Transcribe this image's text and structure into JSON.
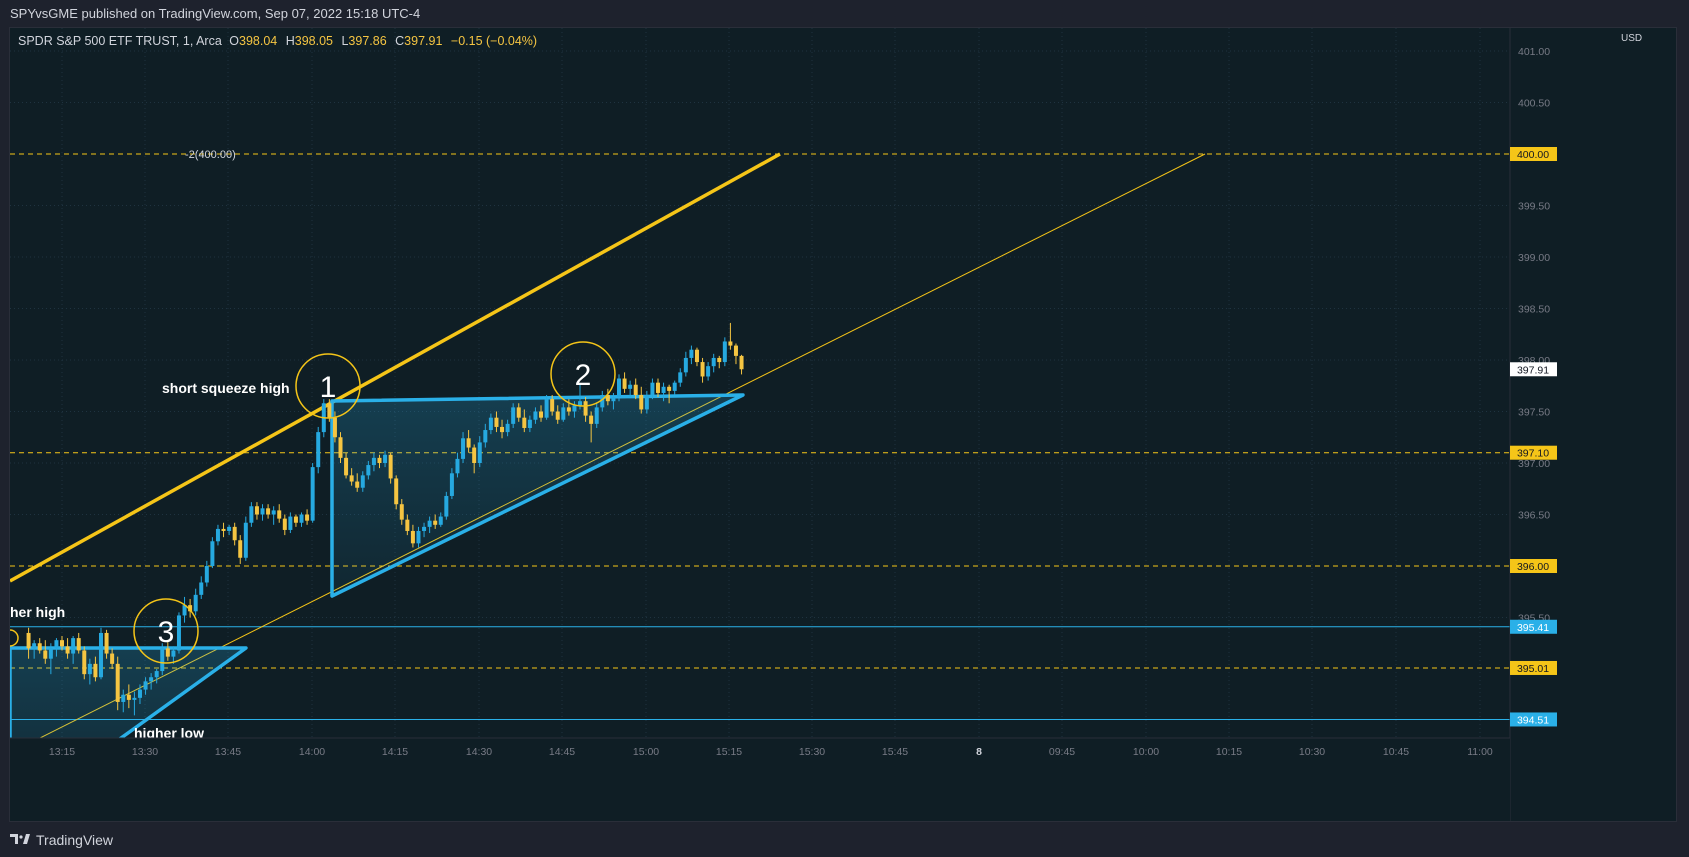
{
  "header": {
    "published": "SPYvsGME published on TradingView.com, Sep 07, 2022 15:18 UTC-4"
  },
  "footer": {
    "brand": "TradingView"
  },
  "colors": {
    "bg": "#0f1e25",
    "up": "#26a9e0",
    "down": "#f5c542",
    "accent_yellow": "#f5c518",
    "accent_blue": "#2ab0e8",
    "grid": "#1f3340"
  },
  "chart_data": {
    "type": "candlestick",
    "title": "SPDR S&P 500 ETF TRUST, 1, Arca",
    "ohlc": {
      "O": "398.04",
      "H": "398.05",
      "L": "397.86",
      "C": "397.91",
      "change": "−0.15 (−0.04%)"
    },
    "currency": "USD",
    "ylim": [
      394.3,
      401.1
    ],
    "y_ticks": [
      "395.50",
      "396.50",
      "397.00",
      "397.50",
      "398.00",
      "398.50",
      "399.00",
      "399.50",
      "400.50",
      "401.00"
    ],
    "x_ticks": [
      "13:15",
      "13:30",
      "13:45",
      "14:00",
      "14:15",
      "14:30",
      "14:45",
      "15:00",
      "15:15",
      "15:30",
      "15:45",
      "8",
      "09:45",
      "10:00",
      "10:15",
      "10:30",
      "10:45",
      "11:00"
    ],
    "last_price": "397.91",
    "horizontal_lines": [
      {
        "price": "400.00",
        "style": "dashed",
        "color": "#f5c518",
        "label": "-2(400.00)"
      },
      {
        "price": "397.10",
        "style": "dashed",
        "color": "#f5c518"
      },
      {
        "price": "396.00",
        "style": "dashed",
        "color": "#f5c518"
      },
      {
        "price": "395.41",
        "style": "solid",
        "color": "#2ab0e8"
      },
      {
        "price": "395.01",
        "style": "dashed",
        "color": "#f5c518"
      },
      {
        "price": "394.51",
        "style": "solid",
        "color": "#2ab0e8"
      }
    ],
    "annotations": [
      {
        "label": "1",
        "text": "short squeeze high"
      },
      {
        "label": "2",
        "text": ""
      },
      {
        "label": "3",
        "text": ""
      },
      {
        "label": "",
        "text": "her high"
      },
      {
        "label": "",
        "text": "higher low"
      }
    ],
    "candles": [
      {
        "t": "13:09",
        "o": 395.35,
        "h": 395.4,
        "l": 395.1,
        "c": 395.2
      },
      {
        "t": "13:10",
        "o": 395.2,
        "h": 395.28,
        "l": 395.1,
        "c": 395.25
      },
      {
        "t": "13:11",
        "o": 395.25,
        "h": 395.3,
        "l": 395.15,
        "c": 395.18
      },
      {
        "t": "13:12",
        "o": 395.18,
        "h": 395.28,
        "l": 395.05,
        "c": 395.1
      },
      {
        "t": "13:13",
        "o": 395.1,
        "h": 395.25,
        "l": 394.95,
        "c": 395.2
      },
      {
        "t": "13:14",
        "o": 395.2,
        "h": 395.3,
        "l": 395.12,
        "c": 395.28
      },
      {
        "t": "13:15",
        "o": 395.28,
        "h": 395.32,
        "l": 395.18,
        "c": 395.22
      },
      {
        "t": "13:16",
        "o": 395.22,
        "h": 395.3,
        "l": 395.1,
        "c": 395.15
      },
      {
        "t": "13:17",
        "o": 395.15,
        "h": 395.32,
        "l": 395.05,
        "c": 395.3
      },
      {
        "t": "13:18",
        "o": 395.3,
        "h": 395.35,
        "l": 395.15,
        "c": 395.18
      },
      {
        "t": "13:19",
        "o": 395.18,
        "h": 395.22,
        "l": 394.9,
        "c": 394.95
      },
      {
        "t": "13:20",
        "o": 394.95,
        "h": 395.1,
        "l": 394.85,
        "c": 395.05
      },
      {
        "t": "13:21",
        "o": 395.05,
        "h": 395.12,
        "l": 394.88,
        "c": 394.92
      },
      {
        "t": "13:22",
        "o": 394.92,
        "h": 395.4,
        "l": 394.9,
        "c": 395.35
      },
      {
        "t": "13:23",
        "o": 395.35,
        "h": 395.38,
        "l": 395.1,
        "c": 395.15
      },
      {
        "t": "13:24",
        "o": 395.15,
        "h": 395.2,
        "l": 395.0,
        "c": 395.05
      },
      {
        "t": "13:25",
        "o": 395.05,
        "h": 395.12,
        "l": 394.6,
        "c": 394.68
      },
      {
        "t": "13:26",
        "o": 394.68,
        "h": 394.8,
        "l": 394.58,
        "c": 394.75
      },
      {
        "t": "13:27",
        "o": 394.75,
        "h": 394.85,
        "l": 394.62,
        "c": 394.7
      },
      {
        "t": "13:28",
        "o": 394.7,
        "h": 394.78,
        "l": 394.55,
        "c": 394.72
      },
      {
        "t": "13:29",
        "o": 394.72,
        "h": 394.85,
        "l": 394.66,
        "c": 394.8
      },
      {
        "t": "13:30",
        "o": 394.8,
        "h": 394.92,
        "l": 394.75,
        "c": 394.88
      },
      {
        "t": "13:31",
        "o": 394.88,
        "h": 394.96,
        "l": 394.8,
        "c": 394.92
      },
      {
        "t": "13:32",
        "o": 394.92,
        "h": 395.0,
        "l": 394.86,
        "c": 394.98
      },
      {
        "t": "13:33",
        "o": 394.98,
        "h": 395.25,
        "l": 394.94,
        "c": 395.2
      },
      {
        "t": "13:34",
        "o": 395.2,
        "h": 395.26,
        "l": 395.08,
        "c": 395.12
      },
      {
        "t": "13:35",
        "o": 395.12,
        "h": 395.22,
        "l": 395.05,
        "c": 395.18
      },
      {
        "t": "13:36",
        "o": 395.18,
        "h": 395.55,
        "l": 395.15,
        "c": 395.52
      },
      {
        "t": "13:37",
        "o": 395.52,
        "h": 395.7,
        "l": 395.45,
        "c": 395.62
      },
      {
        "t": "13:38",
        "o": 395.62,
        "h": 395.68,
        "l": 395.5,
        "c": 395.56
      },
      {
        "t": "13:39",
        "o": 395.56,
        "h": 395.78,
        "l": 395.52,
        "c": 395.72
      },
      {
        "t": "13:40",
        "o": 395.72,
        "h": 395.9,
        "l": 395.68,
        "c": 395.84
      },
      {
        "t": "13:41",
        "o": 395.84,
        "h": 396.05,
        "l": 395.8,
        "c": 396.0
      },
      {
        "t": "13:42",
        "o": 396.0,
        "h": 396.28,
        "l": 395.98,
        "c": 396.24
      },
      {
        "t": "13:43",
        "o": 396.24,
        "h": 396.4,
        "l": 396.2,
        "c": 396.36
      },
      {
        "t": "13:44",
        "o": 396.36,
        "h": 396.42,
        "l": 396.28,
        "c": 396.34
      },
      {
        "t": "13:45",
        "o": 396.34,
        "h": 396.4,
        "l": 396.3,
        "c": 396.38
      },
      {
        "t": "13:46",
        "o": 396.38,
        "h": 396.42,
        "l": 396.2,
        "c": 396.25
      },
      {
        "t": "13:47",
        "o": 396.25,
        "h": 396.3,
        "l": 396.02,
        "c": 396.08
      },
      {
        "t": "13:48",
        "o": 396.08,
        "h": 396.48,
        "l": 396.05,
        "c": 396.42
      },
      {
        "t": "13:49",
        "o": 396.42,
        "h": 396.62,
        "l": 396.38,
        "c": 396.58
      },
      {
        "t": "13:50",
        "o": 396.58,
        "h": 396.62,
        "l": 396.45,
        "c": 396.5
      },
      {
        "t": "13:51",
        "o": 396.5,
        "h": 396.6,
        "l": 396.44,
        "c": 396.56
      },
      {
        "t": "13:52",
        "o": 396.56,
        "h": 396.6,
        "l": 396.46,
        "c": 396.5
      },
      {
        "t": "13:53",
        "o": 396.5,
        "h": 396.58,
        "l": 396.4,
        "c": 396.54
      },
      {
        "t": "13:54",
        "o": 396.54,
        "h": 396.6,
        "l": 396.42,
        "c": 396.46
      },
      {
        "t": "13:55",
        "o": 396.46,
        "h": 396.5,
        "l": 396.3,
        "c": 396.35
      },
      {
        "t": "13:56",
        "o": 396.35,
        "h": 396.52,
        "l": 396.32,
        "c": 396.48
      },
      {
        "t": "13:57",
        "o": 396.48,
        "h": 396.5,
        "l": 396.38,
        "c": 396.42
      },
      {
        "t": "13:58",
        "o": 396.42,
        "h": 396.52,
        "l": 396.38,
        "c": 396.5
      },
      {
        "t": "13:59",
        "o": 396.5,
        "h": 396.55,
        "l": 396.4,
        "c": 396.44
      },
      {
        "t": "14:00",
        "o": 396.44,
        "h": 397.0,
        "l": 396.42,
        "c": 396.96
      },
      {
        "t": "14:01",
        "o": 396.96,
        "h": 397.35,
        "l": 396.9,
        "c": 397.3
      },
      {
        "t": "14:02",
        "o": 397.3,
        "h": 397.62,
        "l": 397.25,
        "c": 397.58
      },
      {
        "t": "14:03",
        "o": 397.58,
        "h": 397.62,
        "l": 397.4,
        "c": 397.44
      },
      {
        "t": "14:04",
        "o": 397.44,
        "h": 397.5,
        "l": 397.2,
        "c": 397.25
      },
      {
        "t": "14:05",
        "o": 397.25,
        "h": 397.3,
        "l": 397.0,
        "c": 397.05
      },
      {
        "t": "14:06",
        "o": 397.05,
        "h": 397.1,
        "l": 396.85,
        "c": 396.88
      },
      {
        "t": "14:07",
        "o": 396.88,
        "h": 396.95,
        "l": 396.78,
        "c": 396.82
      },
      {
        "t": "14:08",
        "o": 396.82,
        "h": 396.9,
        "l": 396.72,
        "c": 396.76
      },
      {
        "t": "14:09",
        "o": 396.76,
        "h": 396.92,
        "l": 396.72,
        "c": 396.88
      },
      {
        "t": "14:10",
        "o": 396.88,
        "h": 397.02,
        "l": 396.84,
        "c": 396.98
      },
      {
        "t": "14:11",
        "o": 396.98,
        "h": 397.1,
        "l": 396.92,
        "c": 397.05
      },
      {
        "t": "14:12",
        "o": 397.05,
        "h": 397.08,
        "l": 396.95,
        "c": 397.0
      },
      {
        "t": "14:13",
        "o": 397.0,
        "h": 397.12,
        "l": 396.96,
        "c": 397.08
      },
      {
        "t": "14:14",
        "o": 397.08,
        "h": 397.1,
        "l": 396.8,
        "c": 396.85
      },
      {
        "t": "14:15",
        "o": 396.85,
        "h": 396.88,
        "l": 396.55,
        "c": 396.6
      },
      {
        "t": "14:16",
        "o": 396.6,
        "h": 396.65,
        "l": 396.4,
        "c": 396.45
      },
      {
        "t": "14:17",
        "o": 396.45,
        "h": 396.5,
        "l": 396.3,
        "c": 396.34
      },
      {
        "t": "14:18",
        "o": 396.34,
        "h": 396.4,
        "l": 396.18,
        "c": 396.22
      },
      {
        "t": "14:19",
        "o": 396.22,
        "h": 396.38,
        "l": 396.18,
        "c": 396.34
      },
      {
        "t": "14:20",
        "o": 396.34,
        "h": 396.42,
        "l": 396.28,
        "c": 396.38
      },
      {
        "t": "14:21",
        "o": 396.38,
        "h": 396.48,
        "l": 396.32,
        "c": 396.44
      },
      {
        "t": "14:22",
        "o": 396.44,
        "h": 396.5,
        "l": 396.36,
        "c": 396.4
      },
      {
        "t": "14:23",
        "o": 396.4,
        "h": 396.52,
        "l": 396.38,
        "c": 396.48
      },
      {
        "t": "14:24",
        "o": 396.48,
        "h": 396.72,
        "l": 396.45,
        "c": 396.68
      },
      {
        "t": "14:25",
        "o": 396.68,
        "h": 396.95,
        "l": 396.65,
        "c": 396.9
      },
      {
        "t": "14:26",
        "o": 396.9,
        "h": 397.1,
        "l": 396.86,
        "c": 397.04
      },
      {
        "t": "14:27",
        "o": 397.04,
        "h": 397.3,
        "l": 397.0,
        "c": 397.24
      },
      {
        "t": "14:28",
        "o": 397.24,
        "h": 397.32,
        "l": 397.1,
        "c": 397.15
      },
      {
        "t": "14:29",
        "o": 397.15,
        "h": 397.18,
        "l": 396.9,
        "c": 397.0
      },
      {
        "t": "14:30",
        "o": 397.0,
        "h": 397.26,
        "l": 396.96,
        "c": 397.2
      },
      {
        "t": "14:31",
        "o": 397.2,
        "h": 397.38,
        "l": 397.15,
        "c": 397.32
      },
      {
        "t": "14:32",
        "o": 397.32,
        "h": 397.48,
        "l": 397.28,
        "c": 397.44
      },
      {
        "t": "14:33",
        "o": 397.44,
        "h": 397.5,
        "l": 397.3,
        "c": 397.35
      },
      {
        "t": "14:34",
        "o": 397.35,
        "h": 397.42,
        "l": 397.24,
        "c": 397.3
      },
      {
        "t": "14:35",
        "o": 397.3,
        "h": 397.42,
        "l": 397.26,
        "c": 397.38
      },
      {
        "t": "14:36",
        "o": 397.38,
        "h": 397.58,
        "l": 397.34,
        "c": 397.54
      },
      {
        "t": "14:37",
        "o": 397.54,
        "h": 397.58,
        "l": 397.4,
        "c": 397.44
      },
      {
        "t": "14:38",
        "o": 397.44,
        "h": 397.52,
        "l": 397.3,
        "c": 397.34
      },
      {
        "t": "14:39",
        "o": 397.34,
        "h": 397.46,
        "l": 397.3,
        "c": 397.42
      },
      {
        "t": "14:40",
        "o": 397.42,
        "h": 397.54,
        "l": 397.38,
        "c": 397.5
      },
      {
        "t": "14:41",
        "o": 397.5,
        "h": 397.56,
        "l": 397.4,
        "c": 397.44
      },
      {
        "t": "14:42",
        "o": 397.44,
        "h": 397.66,
        "l": 397.42,
        "c": 397.62
      },
      {
        "t": "14:43",
        "o": 397.62,
        "h": 397.66,
        "l": 397.46,
        "c": 397.5
      },
      {
        "t": "14:44",
        "o": 397.5,
        "h": 397.56,
        "l": 397.38,
        "c": 397.42
      },
      {
        "t": "14:45",
        "o": 397.42,
        "h": 397.58,
        "l": 397.4,
        "c": 397.54
      },
      {
        "t": "14:46",
        "o": 397.54,
        "h": 397.62,
        "l": 397.46,
        "c": 397.5
      },
      {
        "t": "14:47",
        "o": 397.5,
        "h": 397.6,
        "l": 397.44,
        "c": 397.56
      },
      {
        "t": "14:48",
        "o": 397.56,
        "h": 397.76,
        "l": 397.52,
        "c": 397.6
      },
      {
        "t": "14:49",
        "o": 397.6,
        "h": 397.64,
        "l": 397.4,
        "c": 397.46
      },
      {
        "t": "14:50",
        "o": 397.46,
        "h": 397.5,
        "l": 397.2,
        "c": 397.38
      },
      {
        "t": "14:51",
        "o": 397.38,
        "h": 397.58,
        "l": 397.34,
        "c": 397.54
      },
      {
        "t": "14:52",
        "o": 397.54,
        "h": 397.7,
        "l": 397.5,
        "c": 397.66
      },
      {
        "t": "14:53",
        "o": 397.66,
        "h": 397.72,
        "l": 397.56,
        "c": 397.6
      },
      {
        "t": "14:54",
        "o": 397.6,
        "h": 397.68,
        "l": 397.52,
        "c": 397.64
      },
      {
        "t": "14:55",
        "o": 397.64,
        "h": 397.86,
        "l": 397.6,
        "c": 397.82
      },
      {
        "t": "14:56",
        "o": 397.82,
        "h": 397.88,
        "l": 397.68,
        "c": 397.72
      },
      {
        "t": "14:57",
        "o": 397.72,
        "h": 397.8,
        "l": 397.64,
        "c": 397.76
      },
      {
        "t": "14:58",
        "o": 397.76,
        "h": 397.82,
        "l": 397.62,
        "c": 397.66
      },
      {
        "t": "14:59",
        "o": 397.66,
        "h": 397.74,
        "l": 397.48,
        "c": 397.52
      },
      {
        "t": "15:00",
        "o": 397.52,
        "h": 397.7,
        "l": 397.48,
        "c": 397.66
      },
      {
        "t": "15:01",
        "o": 397.66,
        "h": 397.82,
        "l": 397.62,
        "c": 397.78
      },
      {
        "t": "15:02",
        "o": 397.78,
        "h": 397.82,
        "l": 397.64,
        "c": 397.68
      },
      {
        "t": "15:03",
        "o": 397.68,
        "h": 397.78,
        "l": 397.6,
        "c": 397.74
      },
      {
        "t": "15:04",
        "o": 397.74,
        "h": 397.76,
        "l": 397.58,
        "c": 397.7
      },
      {
        "t": "15:05",
        "o": 397.7,
        "h": 397.8,
        "l": 397.66,
        "c": 397.78
      },
      {
        "t": "15:06",
        "o": 397.78,
        "h": 397.92,
        "l": 397.74,
        "c": 397.88
      },
      {
        "t": "15:07",
        "o": 397.88,
        "h": 398.08,
        "l": 397.84,
        "c": 398.02
      },
      {
        "t": "15:08",
        "o": 398.02,
        "h": 398.14,
        "l": 397.96,
        "c": 398.1
      },
      {
        "t": "15:09",
        "o": 398.1,
        "h": 398.12,
        "l": 397.94,
        "c": 397.98
      },
      {
        "t": "15:10",
        "o": 397.98,
        "h": 398.02,
        "l": 397.78,
        "c": 397.84
      },
      {
        "t": "15:11",
        "o": 397.84,
        "h": 397.98,
        "l": 397.8,
        "c": 397.94
      },
      {
        "t": "15:12",
        "o": 397.94,
        "h": 398.06,
        "l": 397.88,
        "c": 398.02
      },
      {
        "t": "15:13",
        "o": 398.02,
        "h": 398.04,
        "l": 397.92,
        "c": 397.98
      },
      {
        "t": "15:14",
        "o": 397.98,
        "h": 398.22,
        "l": 397.94,
        "c": 398.18
      },
      {
        "t": "15:15",
        "o": 398.18,
        "h": 398.36,
        "l": 398.1,
        "c": 398.14
      },
      {
        "t": "15:16",
        "o": 398.14,
        "h": 398.16,
        "l": 397.96,
        "c": 398.04
      },
      {
        "t": "15:17",
        "o": 398.04,
        "h": 398.05,
        "l": 397.86,
        "c": 397.91
      }
    ]
  }
}
